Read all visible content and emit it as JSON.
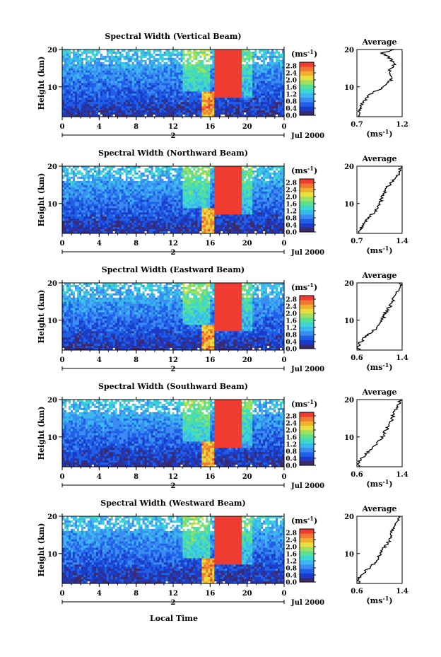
{
  "figure": {
    "x_axis_label": "Local Time",
    "unit_label": "(ms",
    "unit_sup": "-1",
    "unit_close": ")",
    "y_axis_label": "Height (km)",
    "date_label": "Jul 2000",
    "date_tick": "2",
    "average_title": "Average"
  },
  "colors": {
    "scale": [
      "#3b2a6e",
      "#1a3cc8",
      "#2060e8",
      "#3a8cf0",
      "#3cb8f0",
      "#3ad8d0",
      "#5ae090",
      "#a0e060",
      "#e8e040",
      "#f0b030",
      "#f07830",
      "#f03c30"
    ]
  },
  "chart_data": [
    {
      "type": "heatmap",
      "title": "Spectral Width (Vertical Beam)",
      "xlabel": "",
      "ylabel": "Height (km)",
      "x_ticks": [
        "0",
        "4",
        "8",
        "12",
        "16",
        "20",
        "0"
      ],
      "y_ticks": [
        "20",
        "10"
      ],
      "xlim": [
        0,
        24
      ],
      "ylim": [
        2,
        20
      ],
      "colorbar": {
        "label": "ms-1",
        "ticks": [
          "2.8",
          "2.4",
          "2.0",
          "1.6",
          "1.2",
          "0.8",
          "0.4",
          "0.0"
        ],
        "range": [
          0,
          3
        ]
      },
      "average_profile": {
        "title": "Average",
        "xlabel": "ms-1",
        "x_ticks": [
          "0.7",
          "1.2"
        ],
        "xlim": [
          0.7,
          1.2
        ],
        "y_ticks": [
          "20",
          "10"
        ],
        "height": [
          2,
          4,
          6,
          8,
          9,
          10,
          12,
          14,
          16,
          18,
          19,
          20
        ],
        "value": [
          0.72,
          0.74,
          0.77,
          0.85,
          0.92,
          1.0,
          1.08,
          1.05,
          1.12,
          1.05,
          0.98,
          1.1
        ]
      }
    },
    {
      "type": "heatmap",
      "title": "Spectral Width (Northward Beam)",
      "xlabel": "",
      "ylabel": "Height (km)",
      "x_ticks": [
        "0",
        "4",
        "8",
        "12",
        "16",
        "20",
        "0"
      ],
      "y_ticks": [
        "20",
        "10"
      ],
      "xlim": [
        0,
        24
      ],
      "ylim": [
        2,
        20
      ],
      "colorbar": {
        "label": "ms-1",
        "ticks": [
          "2.8",
          "2.4",
          "2.0",
          "1.6",
          "1.2",
          "0.8",
          "0.4",
          "0.0"
        ],
        "range": [
          0,
          3
        ]
      },
      "average_profile": {
        "title": "Average",
        "xlabel": "ms-1",
        "x_ticks": [
          "0.7",
          "1.4"
        ],
        "xlim": [
          0.7,
          1.4
        ],
        "y_ticks": [
          "20",
          "10"
        ],
        "height": [
          2,
          4,
          6,
          8,
          10,
          12,
          14,
          16,
          18,
          20
        ],
        "value": [
          0.72,
          0.78,
          0.88,
          0.98,
          1.05,
          1.1,
          1.15,
          1.25,
          1.35,
          1.38
        ]
      }
    },
    {
      "type": "heatmap",
      "title": "Spectral Width (Eastward Beam)",
      "xlabel": "",
      "ylabel": "Height (km)",
      "x_ticks": [
        "0",
        "4",
        "8",
        "12",
        "16",
        "20",
        "0"
      ],
      "y_ticks": [
        "20",
        "10"
      ],
      "xlim": [
        0,
        24
      ],
      "ylim": [
        2,
        20
      ],
      "colorbar": {
        "label": "ms-1",
        "ticks": [
          "2.8",
          "2.4",
          "2.0",
          "1.6",
          "1.2",
          "0.8",
          "0.4",
          "0.0"
        ],
        "range": [
          0,
          3
        ]
      },
      "average_profile": {
        "title": "Average",
        "xlabel": "ms-1",
        "x_ticks": [
          "0.6",
          "1.4"
        ],
        "xlim": [
          0.6,
          1.4
        ],
        "y_ticks": [
          "20",
          "10"
        ],
        "height": [
          2,
          4,
          6,
          8,
          10,
          12,
          14,
          16,
          18,
          20
        ],
        "value": [
          0.62,
          0.66,
          0.78,
          0.95,
          1.05,
          1.1,
          1.2,
          1.25,
          1.32,
          1.38
        ]
      }
    },
    {
      "type": "heatmap",
      "title": "Spectral Width (Southward Beam)",
      "xlabel": "",
      "ylabel": "Height (km)",
      "x_ticks": [
        "0",
        "4",
        "8",
        "12",
        "16",
        "20",
        "0"
      ],
      "y_ticks": [
        "20",
        "10"
      ],
      "xlim": [
        0,
        24
      ],
      "ylim": [
        2,
        20
      ],
      "colorbar": {
        "label": "ms-1",
        "ticks": [
          "2.8",
          "2.4",
          "2.0",
          "1.6",
          "1.2",
          "0.8",
          "0.4",
          "0.0"
        ],
        "range": [
          0,
          3
        ]
      },
      "average_profile": {
        "title": "Average",
        "xlabel": "ms-1",
        "x_ticks": [
          "0.6",
          "1.4"
        ],
        "xlim": [
          0.6,
          1.4
        ],
        "y_ticks": [
          "20",
          "10"
        ],
        "height": [
          2,
          4,
          6,
          8,
          10,
          12,
          14,
          16,
          18,
          20
        ],
        "value": [
          0.62,
          0.66,
          0.8,
          0.95,
          1.05,
          1.12,
          1.2,
          1.25,
          1.32,
          1.36
        ]
      }
    },
    {
      "type": "heatmap",
      "title": "Spectral Width (Westward Beam)",
      "xlabel": "Local Time",
      "ylabel": "Height (km)",
      "x_ticks": [
        "0",
        "4",
        "8",
        "12",
        "16",
        "20",
        "0"
      ],
      "y_ticks": [
        "20",
        "10"
      ],
      "xlim": [
        0,
        24
      ],
      "ylim": [
        2,
        20
      ],
      "colorbar": {
        "label": "ms-1",
        "ticks": [
          "2.8",
          "2.4",
          "2.0",
          "1.6",
          "1.2",
          "0.8",
          "0.4",
          "0.0"
        ],
        "range": [
          0,
          3
        ]
      },
      "average_profile": {
        "title": "Average",
        "xlabel": "ms-1",
        "x_ticks": [
          "0.6",
          "1.4"
        ],
        "xlim": [
          0.6,
          1.4
        ],
        "y_ticks": [
          "20",
          "10"
        ],
        "height": [
          2,
          4,
          6,
          8,
          10,
          12,
          14,
          16,
          18,
          20
        ],
        "value": [
          0.62,
          0.66,
          0.8,
          0.95,
          1.02,
          1.1,
          1.2,
          1.22,
          1.3,
          1.35
        ]
      }
    }
  ]
}
